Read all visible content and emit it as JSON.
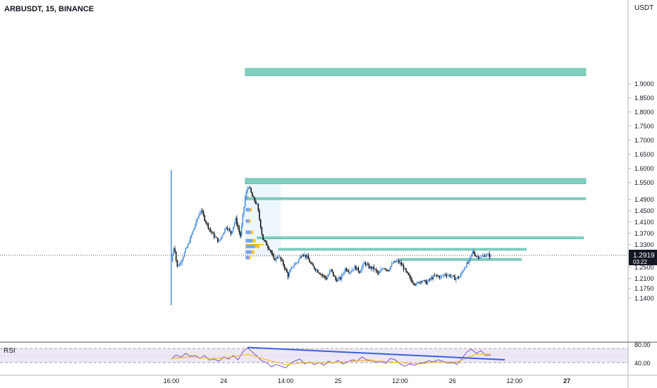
{
  "header": {
    "symbol_line": "ARBUSDT, 15, BINANCE",
    "currency": "USDT"
  },
  "price_axis": {
    "ticks": [
      "1.9000",
      "1.8500",
      "1.8000",
      "1.7500",
      "1.7000",
      "1.6500",
      "1.6000",
      "1.5500",
      "1.4900",
      "1.4500",
      "1.4100",
      "1.3700",
      "1.3300",
      "1.2500",
      "1.2100",
      "1.1750",
      "1.1400"
    ],
    "last_price": "1.2919",
    "countdown": "03:22"
  },
  "time_axis": {
    "ticks": [
      "16:00",
      "24",
      "14:00",
      "25",
      "12:00",
      "26",
      "12:00",
      "27"
    ]
  },
  "rsi": {
    "label": "RSI",
    "ticks": [
      "80.00",
      "40.00"
    ]
  },
  "colors": {
    "bull": "#4a90e2",
    "bear": "#111111",
    "zone": "#7fcfbf",
    "zone_border": "#4bb39e",
    "trendline": "#3a62d9",
    "rsi_line": "#7e57c2",
    "rsi_ma": "#f5b800",
    "rsi_band": "#ede7f6",
    "profile": "#e6f2fb",
    "price_tag": "#131722"
  },
  "chart_data": {
    "type": "candlestick",
    "symbol": "ARBUSDT",
    "interval": "15",
    "exchange": "BINANCE",
    "ylim": [
      1.11,
      1.96
    ],
    "last_price": 1.2919,
    "zones": [
      {
        "top": 1.955,
        "bottom": 1.928,
        "from_hour": 27.5,
        "to_hour": 99
      },
      {
        "top": 1.565,
        "bottom": 1.545,
        "from_hour": 27.5,
        "to_hour": 99
      },
      {
        "top": 1.497,
        "bottom": 1.489,
        "from_hour": 28.0,
        "to_hour": 99
      },
      {
        "top": 1.358,
        "bottom": 1.35,
        "from_hour": 30.0,
        "to_hour": 98.5
      },
      {
        "top": 1.317,
        "bottom": 1.31,
        "from_hour": 34.5,
        "to_hour": 86.5
      },
      {
        "top": 1.281,
        "bottom": 1.274,
        "from_hour": 60.0,
        "to_hour": 85.5
      }
    ],
    "price_path": [
      [
        12.0,
        1.27
      ],
      [
        12.6,
        1.33
      ],
      [
        13.2,
        1.25
      ],
      [
        14.0,
        1.27
      ],
      [
        15.5,
        1.33
      ],
      [
        17.0,
        1.4
      ],
      [
        18.2,
        1.455
      ],
      [
        19.0,
        1.42
      ],
      [
        20.0,
        1.385
      ],
      [
        21.0,
        1.36
      ],
      [
        22.0,
        1.34
      ],
      [
        23.5,
        1.395
      ],
      [
        24.5,
        1.37
      ],
      [
        25.5,
        1.42
      ],
      [
        26.5,
        1.36
      ],
      [
        27.5,
        1.5
      ],
      [
        28.2,
        1.54
      ],
      [
        29.0,
        1.5
      ],
      [
        30.0,
        1.47
      ],
      [
        30.7,
        1.4
      ],
      [
        31.2,
        1.35
      ],
      [
        32.0,
        1.33
      ],
      [
        32.8,
        1.31
      ],
      [
        33.5,
        1.275
      ],
      [
        34.5,
        1.29
      ],
      [
        35.5,
        1.26
      ],
      [
        36.5,
        1.22
      ],
      [
        37.5,
        1.255
      ],
      [
        38.5,
        1.27
      ],
      [
        39.5,
        1.3
      ],
      [
        40.5,
        1.285
      ],
      [
        41.5,
        1.255
      ],
      [
        42.5,
        1.24
      ],
      [
        43.5,
        1.225
      ],
      [
        44.5,
        1.21
      ],
      [
        45.5,
        1.24
      ],
      [
        46.5,
        1.205
      ],
      [
        47.5,
        1.21
      ],
      [
        48.5,
        1.245
      ],
      [
        49.5,
        1.235
      ],
      [
        50.5,
        1.25
      ],
      [
        51.5,
        1.235
      ],
      [
        52.5,
        1.265
      ],
      [
        53.5,
        1.25
      ],
      [
        54.5,
        1.245
      ],
      [
        55.5,
        1.225
      ],
      [
        56.5,
        1.25
      ],
      [
        57.5,
        1.24
      ],
      [
        58.5,
        1.265
      ],
      [
        59.5,
        1.272
      ],
      [
        60.5,
        1.255
      ],
      [
        61.5,
        1.225
      ],
      [
        62.5,
        1.2
      ],
      [
        63.5,
        1.19
      ],
      [
        64.5,
        1.205
      ],
      [
        65.5,
        1.195
      ],
      [
        66.5,
        1.21
      ],
      [
        67.5,
        1.22
      ],
      [
        68.5,
        1.215
      ],
      [
        69.5,
        1.225
      ],
      [
        70.5,
        1.22
      ],
      [
        71.5,
        1.21
      ],
      [
        72.5,
        1.215
      ],
      [
        73.5,
        1.25
      ],
      [
        74.5,
        1.27
      ],
      [
        75.2,
        1.305
      ],
      [
        76.0,
        1.29
      ],
      [
        77.0,
        1.285
      ],
      [
        78.0,
        1.295
      ],
      [
        79.0,
        1.29
      ]
    ],
    "rsi": {
      "ylim": [
        0,
        100
      ],
      "bands": [
        40,
        80
      ],
      "path": [
        [
          12,
          50
        ],
        [
          13,
          62
        ],
        [
          14,
          55
        ],
        [
          15,
          66
        ],
        [
          16,
          58
        ],
        [
          17,
          60
        ],
        [
          18,
          52
        ],
        [
          19,
          60
        ],
        [
          20,
          47
        ],
        [
          21,
          50
        ],
        [
          22,
          44
        ],
        [
          23,
          56
        ],
        [
          24,
          50
        ],
        [
          25,
          60
        ],
        [
          26,
          48
        ],
        [
          27,
          70
        ],
        [
          28,
          82
        ],
        [
          29,
          70
        ],
        [
          30,
          58
        ],
        [
          31,
          45
        ],
        [
          32,
          40
        ],
        [
          33,
          28
        ],
        [
          34,
          35
        ],
        [
          35,
          30
        ],
        [
          36,
          25
        ],
        [
          37,
          38
        ],
        [
          38,
          45
        ],
        [
          39,
          50
        ],
        [
          40,
          36
        ],
        [
          41,
          42
        ],
        [
          42,
          34
        ],
        [
          43,
          40
        ],
        [
          44,
          32
        ],
        [
          45,
          44
        ],
        [
          46,
          38
        ],
        [
          47,
          46
        ],
        [
          48,
          36
        ],
        [
          49,
          42
        ],
        [
          50,
          48
        ],
        [
          51,
          44
        ],
        [
          52,
          56
        ],
        [
          53,
          48
        ],
        [
          54,
          46
        ],
        [
          55,
          40
        ],
        [
          56,
          44
        ],
        [
          57,
          38
        ],
        [
          58,
          52
        ],
        [
          59,
          48
        ],
        [
          60,
          36
        ],
        [
          61,
          30
        ],
        [
          62,
          36
        ],
        [
          63,
          32
        ],
        [
          64,
          38
        ],
        [
          65,
          40
        ],
        [
          66,
          45
        ],
        [
          67,
          42
        ],
        [
          68,
          48
        ],
        [
          69,
          44
        ],
        [
          70,
          38
        ],
        [
          71,
          40
        ],
        [
          72,
          35
        ],
        [
          73,
          52
        ],
        [
          74,
          70
        ],
        [
          75,
          78
        ],
        [
          76,
          66
        ],
        [
          77,
          74
        ],
        [
          78,
          60
        ],
        [
          79,
          62
        ]
      ],
      "ma": [
        [
          12,
          52
        ],
        [
          16,
          56
        ],
        [
          20,
          52
        ],
        [
          24,
          54
        ],
        [
          28,
          64
        ],
        [
          32,
          48
        ],
        [
          36,
          34
        ],
        [
          40,
          40
        ],
        [
          44,
          38
        ],
        [
          48,
          42
        ],
        [
          52,
          46
        ],
        [
          56,
          44
        ],
        [
          60,
          40
        ],
        [
          64,
          36
        ],
        [
          68,
          42
        ],
        [
          72,
          42
        ],
        [
          76,
          64
        ],
        [
          79,
          64
        ]
      ],
      "trendline": [
        [
          28,
          83
        ],
        [
          82,
          48
        ]
      ]
    }
  }
}
